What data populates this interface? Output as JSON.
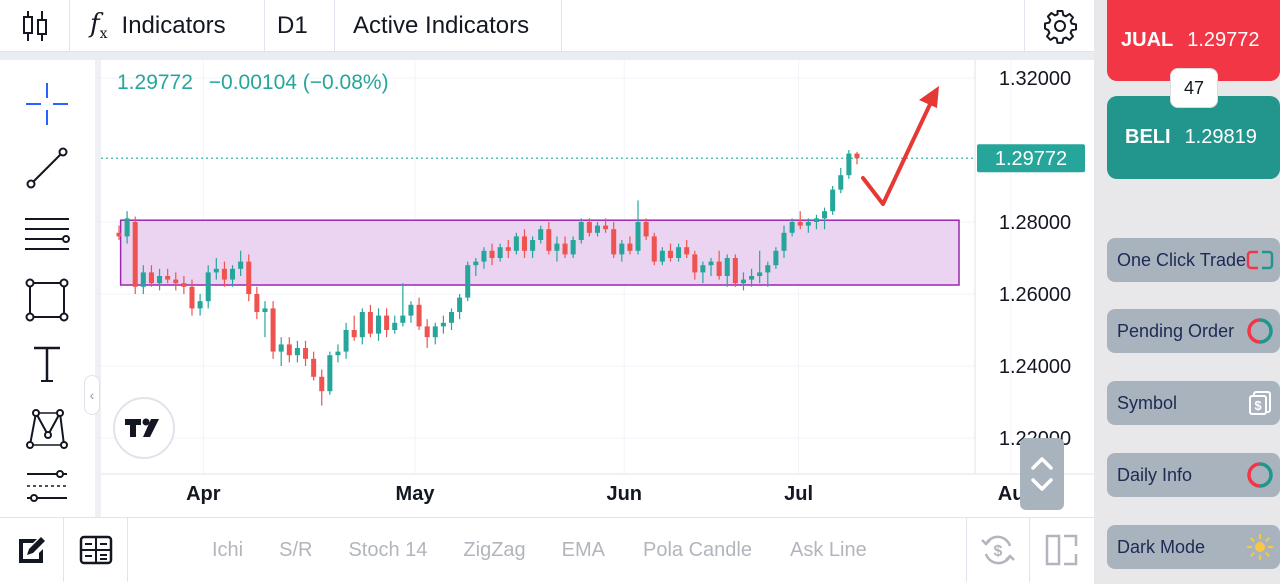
{
  "toolbar": {
    "indicators_label": "Indicators",
    "interval": "D1",
    "active_indicators_label": "Active Indicators"
  },
  "chart": {
    "last_price": "1.29772",
    "change": "−0.00104 (−0.08%)",
    "price_tag": "1.29772",
    "y_tick_labels": [
      "1.32000",
      "1.28000",
      "1.26000",
      "1.24000",
      "1.22000"
    ],
    "x_tick_labels": [
      "Apr",
      "May",
      "Jun",
      "Jul",
      "Au"
    ],
    "colors": {
      "up": "#26a69a",
      "down": "#ef5350",
      "zone_fill": "#e6cdee",
      "zone_stroke": "#9c27b0",
      "arrow": "#e53935",
      "price_tag_bg": "#26a69a"
    }
  },
  "quick_indicators": [
    "Ichi",
    "S/R",
    "Stoch 14",
    "ZigZag",
    "EMA",
    "Pola Candle",
    "Ask Line"
  ],
  "panel": {
    "sell_label": "JUAL",
    "sell_price": "1.29772",
    "spread": "47",
    "buy_label": "BELI",
    "buy_price": "1.29819",
    "buttons": [
      {
        "label": "One Click Trade",
        "icon": "toggle-icon"
      },
      {
        "label": "Pending Order",
        "icon": "clock-ring-icon"
      },
      {
        "label": "Symbol",
        "icon": "dollar-document-icon"
      },
      {
        "label": "Daily Info",
        "icon": "info-ring-icon"
      },
      {
        "label": "Dark Mode",
        "icon": "sun-icon"
      }
    ]
  },
  "chart_data": {
    "type": "candlestick",
    "ylim": [
      1.21,
      1.325
    ],
    "x_ticks": [
      "Apr",
      "May",
      "Jun",
      "Jul",
      "Au"
    ],
    "zone": {
      "low": 1.2625,
      "high": 1.2805
    },
    "last_price": 1.29772,
    "candles": [
      [
        1.277,
        1.279,
        1.275,
        1.276
      ],
      [
        1.276,
        1.283,
        1.274,
        1.281
      ],
      [
        1.28,
        1.2815,
        1.26,
        1.262
      ],
      [
        1.262,
        1.268,
        1.26,
        1.266
      ],
      [
        1.266,
        1.268,
        1.262,
        1.263
      ],
      [
        1.263,
        1.267,
        1.261,
        1.265
      ],
      [
        1.265,
        1.267,
        1.263,
        1.264
      ],
      [
        1.264,
        1.266,
        1.261,
        1.263
      ],
      [
        1.263,
        1.265,
        1.26,
        1.262
      ],
      [
        1.262,
        1.264,
        1.254,
        1.256
      ],
      [
        1.256,
        1.26,
        1.254,
        1.258
      ],
      [
        1.258,
        1.268,
        1.256,
        1.266
      ],
      [
        1.266,
        1.27,
        1.264,
        1.267
      ],
      [
        1.267,
        1.269,
        1.262,
        1.264
      ],
      [
        1.264,
        1.268,
        1.262,
        1.267
      ],
      [
        1.267,
        1.272,
        1.265,
        1.269
      ],
      [
        1.269,
        1.271,
        1.258,
        1.26
      ],
      [
        1.26,
        1.262,
        1.253,
        1.255
      ],
      [
        1.255,
        1.258,
        1.248,
        1.256
      ],
      [
        1.256,
        1.258,
        1.242,
        1.244
      ],
      [
        1.244,
        1.248,
        1.24,
        1.246
      ],
      [
        1.246,
        1.248,
        1.241,
        1.243
      ],
      [
        1.243,
        1.247,
        1.241,
        1.245
      ],
      [
        1.245,
        1.247,
        1.24,
        1.242
      ],
      [
        1.242,
        1.244,
        1.236,
        1.237
      ],
      [
        1.237,
        1.239,
        1.229,
        1.233
      ],
      [
        1.233,
        1.244,
        1.232,
        1.243
      ],
      [
        1.243,
        1.246,
        1.241,
        1.244
      ],
      [
        1.244,
        1.252,
        1.242,
        1.25
      ],
      [
        1.25,
        1.254,
        1.247,
        1.248
      ],
      [
        1.248,
        1.256,
        1.246,
        1.255
      ],
      [
        1.255,
        1.257,
        1.248,
        1.249
      ],
      [
        1.249,
        1.256,
        1.247,
        1.254
      ],
      [
        1.254,
        1.256,
        1.248,
        1.25
      ],
      [
        1.25,
        1.254,
        1.249,
        1.252
      ],
      [
        1.252,
        1.263,
        1.251,
        1.254
      ],
      [
        1.254,
        1.258,
        1.252,
        1.257
      ],
      [
        1.257,
        1.259,
        1.25,
        1.251
      ],
      [
        1.251,
        1.253,
        1.245,
        1.248
      ],
      [
        1.248,
        1.252,
        1.246,
        1.251
      ],
      [
        1.251,
        1.254,
        1.249,
        1.252
      ],
      [
        1.252,
        1.256,
        1.25,
        1.255
      ],
      [
        1.255,
        1.26,
        1.253,
        1.259
      ],
      [
        1.259,
        1.269,
        1.258,
        1.268
      ],
      [
        1.268,
        1.27,
        1.265,
        1.269
      ],
      [
        1.269,
        1.273,
        1.267,
        1.272
      ],
      [
        1.272,
        1.274,
        1.268,
        1.27
      ],
      [
        1.27,
        1.274,
        1.269,
        1.273
      ],
      [
        1.273,
        1.275,
        1.27,
        1.272
      ],
      [
        1.272,
        1.277,
        1.271,
        1.276
      ],
      [
        1.276,
        1.278,
        1.27,
        1.272
      ],
      [
        1.272,
        1.276,
        1.27,
        1.275
      ],
      [
        1.275,
        1.279,
        1.274,
        1.278
      ],
      [
        1.278,
        1.28,
        1.271,
        1.272
      ],
      [
        1.272,
        1.276,
        1.269,
        1.274
      ],
      [
        1.274,
        1.276,
        1.27,
        1.271
      ],
      [
        1.271,
        1.276,
        1.27,
        1.275
      ],
      [
        1.275,
        1.281,
        1.274,
        1.28
      ],
      [
        1.28,
        1.281,
        1.276,
        1.277
      ],
      [
        1.277,
        1.28,
        1.276,
        1.279
      ],
      [
        1.279,
        1.281,
        1.277,
        1.278
      ],
      [
        1.278,
        1.28,
        1.27,
        1.271
      ],
      [
        1.271,
        1.275,
        1.269,
        1.274
      ],
      [
        1.274,
        1.276,
        1.271,
        1.272
      ],
      [
        1.272,
        1.286,
        1.271,
        1.28
      ],
      [
        1.28,
        1.281,
        1.275,
        1.276
      ],
      [
        1.276,
        1.277,
        1.268,
        1.269
      ],
      [
        1.269,
        1.273,
        1.268,
        1.272
      ],
      [
        1.272,
        1.274,
        1.269,
        1.27
      ],
      [
        1.27,
        1.274,
        1.269,
        1.273
      ],
      [
        1.273,
        1.275,
        1.27,
        1.271
      ],
      [
        1.271,
        1.272,
        1.264,
        1.266
      ],
      [
        1.266,
        1.269,
        1.263,
        1.268
      ],
      [
        1.268,
        1.27,
        1.265,
        1.269
      ],
      [
        1.269,
        1.272,
        1.264,
        1.265
      ],
      [
        1.265,
        1.271,
        1.262,
        1.27
      ],
      [
        1.27,
        1.271,
        1.262,
        1.263
      ],
      [
        1.263,
        1.266,
        1.261,
        1.264
      ],
      [
        1.264,
        1.267,
        1.262,
        1.265
      ],
      [
        1.265,
        1.272,
        1.263,
        1.266
      ],
      [
        1.266,
        1.269,
        1.262,
        1.268
      ],
      [
        1.268,
        1.273,
        1.267,
        1.272
      ],
      [
        1.272,
        1.279,
        1.27,
        1.277
      ],
      [
        1.277,
        1.281,
        1.276,
        1.28
      ],
      [
        1.28,
        1.283,
        1.278,
        1.279
      ],
      [
        1.279,
        1.281,
        1.277,
        1.28
      ],
      [
        1.28,
        1.282,
        1.278,
        1.281
      ],
      [
        1.281,
        1.284,
        1.278,
        1.283
      ],
      [
        1.283,
        1.29,
        1.282,
        1.289
      ],
      [
        1.289,
        1.295,
        1.288,
        1.293
      ],
      [
        1.293,
        1.3,
        1.292,
        1.299
      ],
      [
        1.299,
        1.2995,
        1.296,
        1.2977
      ]
    ]
  }
}
